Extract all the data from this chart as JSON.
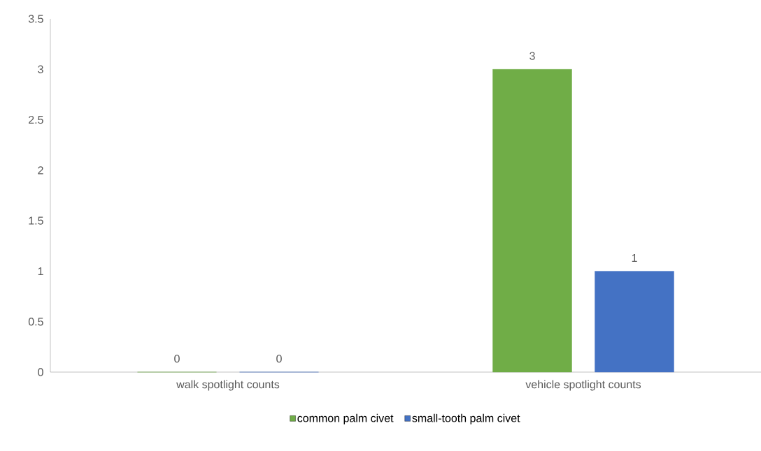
{
  "chart_data": {
    "type": "bar",
    "categories": [
      "walk spotlight counts",
      "vehicle spotlight counts"
    ],
    "series": [
      {
        "name": "common palm civet",
        "color": "#70ad47",
        "values": [
          0,
          3
        ]
      },
      {
        "name": "small-tooth palm civet",
        "color": "#4472c4",
        "values": [
          0,
          1
        ]
      }
    ],
    "ylim": [
      0,
      3.5
    ],
    "yticks": [
      0,
      0.5,
      1,
      1.5,
      2,
      2.5,
      3,
      3.5
    ],
    "data_labels": true,
    "grid": false,
    "legend": "bottom"
  }
}
